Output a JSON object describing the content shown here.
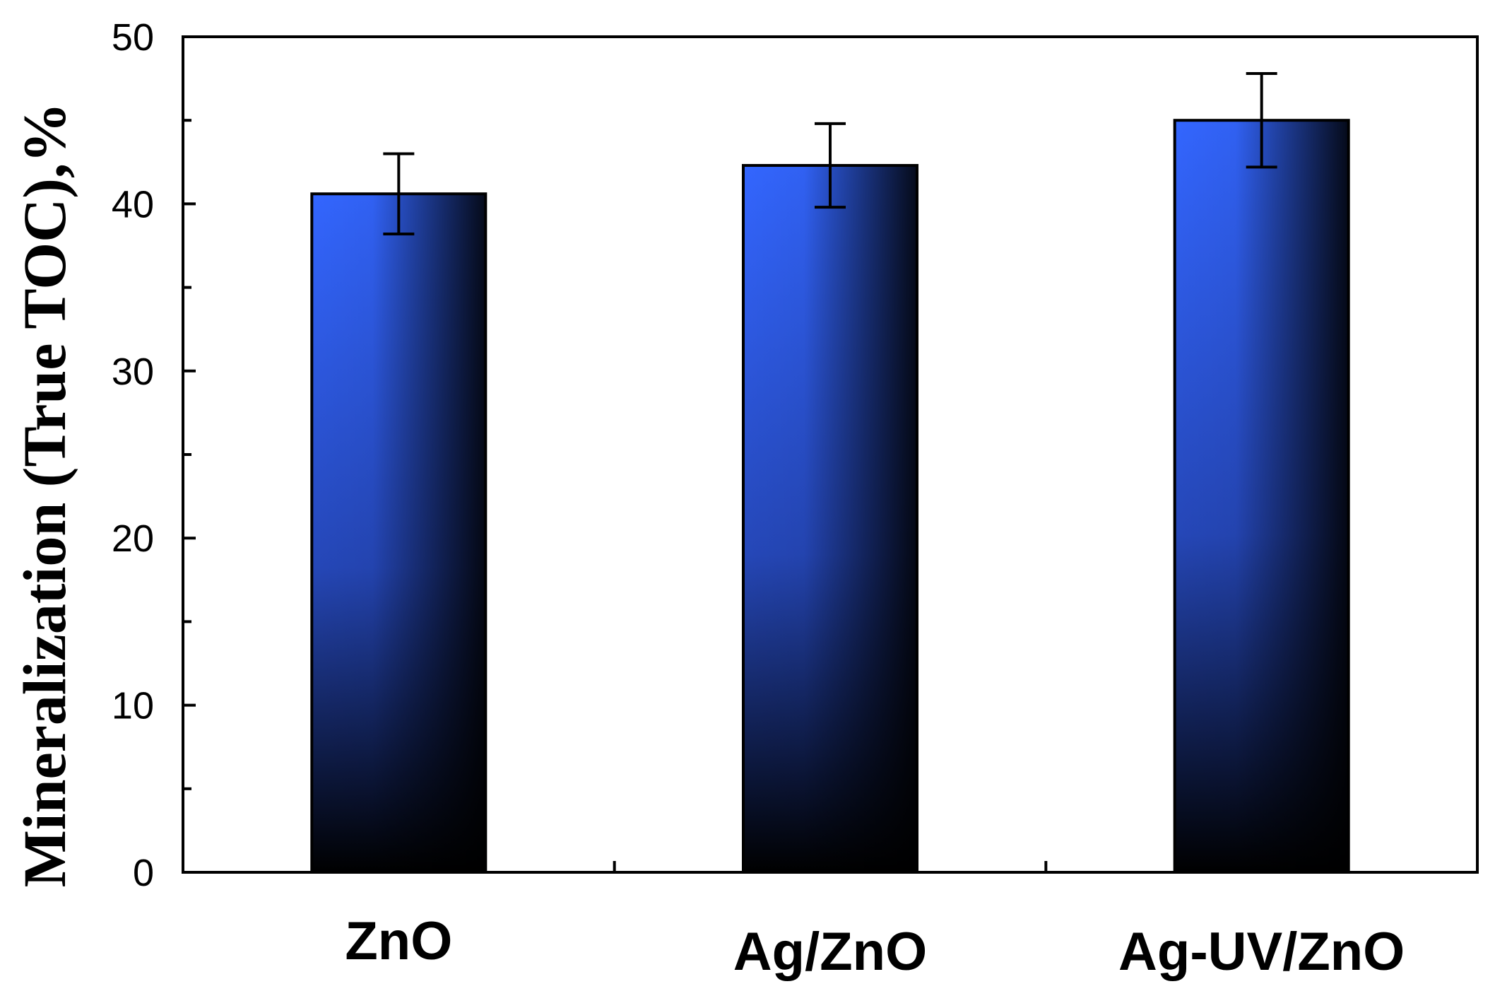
{
  "chart_data": {
    "type": "bar",
    "title": "",
    "xlabel": "",
    "ylabel": "Mineralization (True TOC),%",
    "categories": [
      "ZnO",
      "Ag/ZnO",
      "Ag-UV/ZnO"
    ],
    "values": [
      40.6,
      42.3,
      45.0
    ],
    "errors": [
      2.4,
      2.5,
      2.8
    ],
    "ylim": [
      0,
      50
    ],
    "yticks": [
      0,
      10,
      20,
      30,
      40,
      50
    ],
    "grid": false,
    "colors": {
      "bar_top": "#3366ff",
      "bar_bottom": "#000000",
      "axis": "#000000",
      "background": "#ffffff"
    }
  }
}
